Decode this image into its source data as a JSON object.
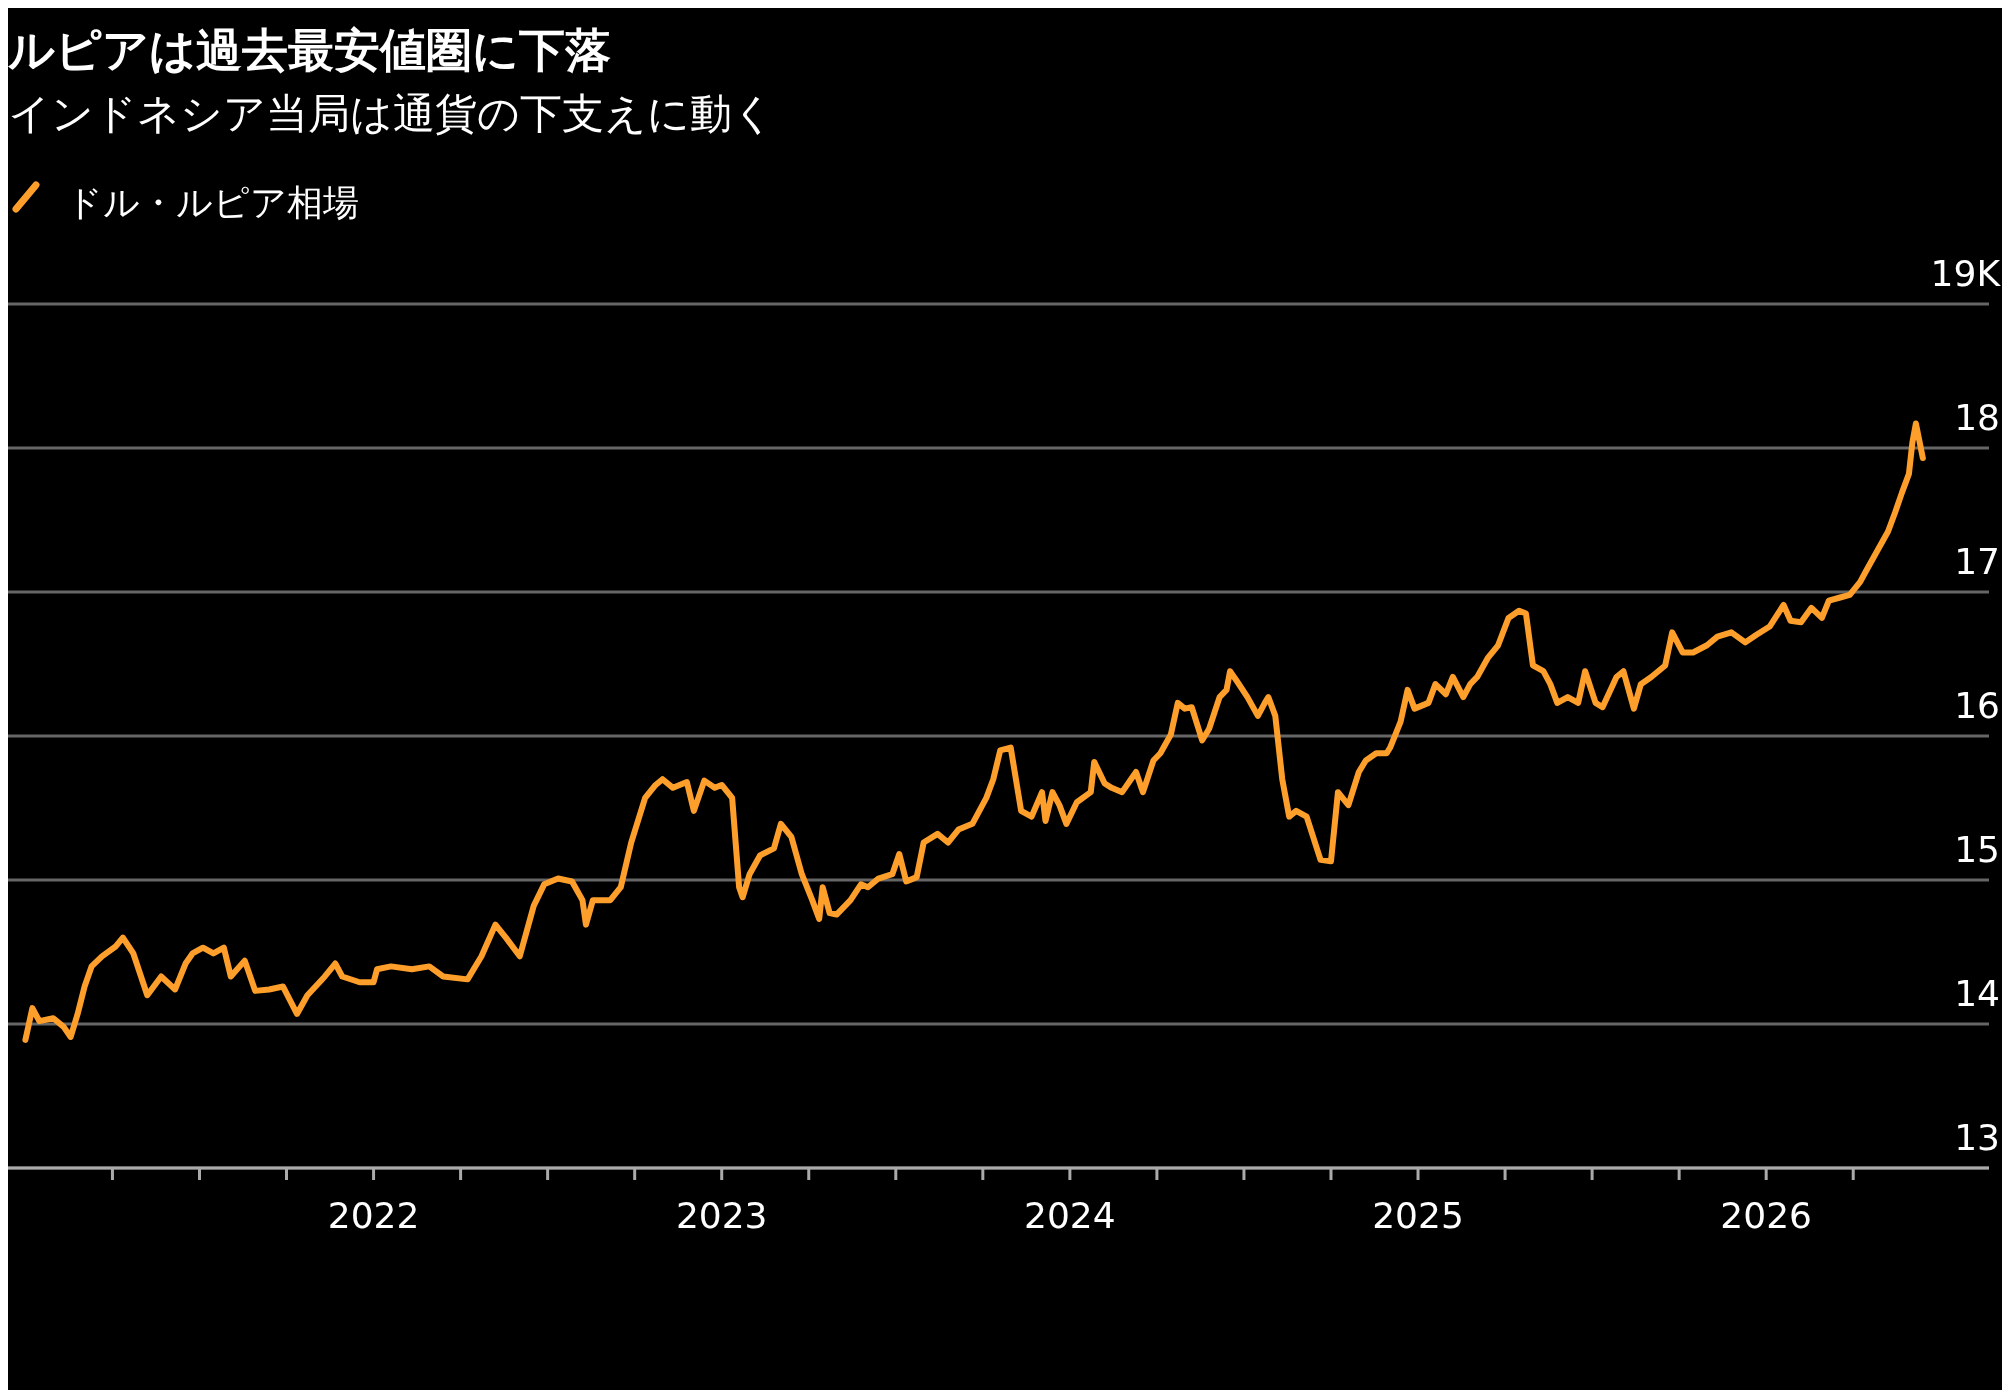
{
  "chart_data": {
    "type": "line",
    "title": "ルピアは過去最安値圏に下落",
    "subtitle": "インドネシア当局は通貨の下支えに動く",
    "xlim": [
      2020.95,
      2026.64
    ],
    "xticks": [
      {
        "value": 2021.25,
        "label": null
      },
      {
        "value": 2021.5,
        "label": null
      },
      {
        "value": 2021.75,
        "label": null
      },
      2022,
      {
        "value": 2022.25,
        "label": null
      },
      {
        "value": 2022.5,
        "label": null
      },
      {
        "value": 2022.75,
        "label": null
      },
      2023,
      {
        "value": 2023.25,
        "label": null
      },
      {
        "value": 2023.5,
        "label": null
      },
      {
        "value": 2023.75,
        "label": null
      },
      2024,
      {
        "value": 2024.25,
        "label": null
      },
      {
        "value": 2024.5,
        "label": null
      },
      {
        "value": 2024.75,
        "label": null
      },
      2025,
      {
        "value": 2025.25,
        "label": null
      },
      {
        "value": 2025.5,
        "label": null
      },
      {
        "value": 2025.75,
        "label": null
      },
      2026,
      {
        "value": 2026.25,
        "label": null
      }
    ],
    "ylim": [
      13,
      19
    ],
    "yticks": [
      13,
      14,
      15,
      16,
      17,
      18,
      {
        "value": 19,
        "label": "19K"
      }
    ],
    "grid": "y",
    "legend": "top left",
    "marker": "none",
    "line_style": "solid",
    "series": [
      {
        "name": "ドル・ルピア相場",
        "color": "#ff9f2b",
        "x": [
          2021.0,
          2021.02,
          2021.04,
          2021.08,
          2021.11,
          2021.13,
          2021.15,
          2021.17,
          2021.19,
          2021.22,
          2021.26,
          2021.28,
          2021.31,
          2021.35,
          2021.39,
          2021.43,
          2021.46,
          2021.48,
          2021.51,
          2021.54,
          2021.57,
          2021.59,
          2021.63,
          2021.66,
          2021.7,
          2021.74,
          2021.78,
          2021.81,
          2021.86,
          2021.89,
          2021.91,
          2021.96,
          2022.0,
          2022.01,
          2022.05,
          2022.11,
          2022.16,
          2022.2,
          2022.27,
          2022.31,
          2022.35,
          2022.38,
          2022.42,
          2022.46,
          2022.49,
          2022.53,
          2022.57,
          2022.6,
          2022.61,
          2022.63,
          2022.68,
          2022.71,
          2022.74,
          2022.78,
          2022.81,
          2022.83,
          2022.86,
          2022.9,
          2022.92,
          2022.95,
          2022.98,
          2023.0,
          2023.03,
          2023.05,
          2023.06,
          2023.08,
          2023.11,
          2023.15,
          2023.17,
          2023.2,
          2023.23,
          2023.26,
          2023.28,
          2023.29,
          2023.31,
          2023.33,
          2023.37,
          2023.4,
          2023.42,
          2023.45,
          2023.49,
          2023.51,
          2023.53,
          2023.56,
          2023.58,
          2023.62,
          2023.65,
          2023.68,
          2023.72,
          2023.76,
          2023.78,
          2023.8,
          2023.83,
          2023.86,
          2023.89,
          2023.92,
          2023.93,
          2023.95,
          2023.97,
          2023.99,
          2024.02,
          2024.06,
          2024.07,
          2024.1,
          2024.12,
          2024.15,
          2024.19,
          2024.21,
          2024.24,
          2024.26,
          2024.29,
          2024.31,
          2024.33,
          2024.35,
          2024.38,
          2024.4,
          2024.43,
          2024.45,
          2024.46,
          2024.48,
          2024.51,
          2024.54,
          2024.56,
          2024.57,
          2024.59,
          2024.61,
          2024.63,
          2024.65,
          2024.68,
          2024.72,
          2024.75,
          2024.77,
          2024.8,
          2024.83,
          2024.85,
          2024.88,
          2024.91,
          2024.92,
          2024.95,
          2024.97,
          2024.99,
          2025.03,
          2025.05,
          2025.08,
          2025.1,
          2025.13,
          2025.15,
          2025.17,
          2025.2,
          2025.23,
          2025.26,
          2025.29,
          2025.31,
          2025.33,
          2025.36,
          2025.38,
          2025.4,
          2025.43,
          2025.46,
          2025.48,
          2025.51,
          2025.53,
          2025.57,
          2025.59,
          2025.62,
          2025.64,
          2025.67,
          2025.71,
          2025.73,
          2025.76,
          2025.79,
          2025.83,
          2025.86,
          2025.9,
          2025.94,
          2025.97,
          2026.01,
          2026.05,
          2026.07,
          2026.1,
          2026.13,
          2026.16,
          2026.18,
          2026.21,
          2026.24,
          2026.27,
          2026.29,
          2026.32,
          2026.35,
          2026.37,
          2026.39,
          2026.41,
          2026.42,
          2026.43,
          2026.45
        ],
        "values": [
          13.89,
          14.11,
          14.02,
          14.04,
          13.98,
          13.91,
          14.07,
          14.26,
          14.4,
          14.47,
          14.54,
          14.6,
          14.49,
          14.2,
          14.33,
          14.24,
          14.42,
          14.49,
          14.53,
          14.49,
          14.53,
          14.33,
          14.44,
          14.23,
          14.24,
          14.26,
          14.07,
          14.2,
          14.33,
          14.42,
          14.33,
          14.29,
          14.29,
          14.38,
          14.4,
          14.38,
          14.4,
          14.33,
          14.31,
          14.47,
          14.69,
          14.6,
          14.47,
          14.82,
          14.97,
          15.01,
          14.99,
          14.86,
          14.69,
          14.86,
          14.86,
          14.95,
          15.26,
          15.57,
          15.66,
          15.7,
          15.64,
          15.68,
          15.48,
          15.69,
          15.64,
          15.66,
          15.57,
          14.95,
          14.88,
          15.04,
          15.17,
          15.22,
          15.39,
          15.3,
          15.04,
          14.86,
          14.73,
          14.95,
          14.77,
          14.76,
          14.86,
          14.97,
          14.95,
          15.01,
          15.04,
          15.18,
          14.99,
          15.02,
          15.26,
          15.32,
          15.26,
          15.35,
          15.39,
          15.57,
          15.7,
          15.9,
          15.92,
          15.48,
          15.44,
          15.61,
          15.41,
          15.61,
          15.52,
          15.39,
          15.54,
          15.61,
          15.82,
          15.67,
          15.64,
          15.61,
          15.75,
          15.61,
          15.83,
          15.88,
          16.01,
          16.23,
          16.19,
          16.2,
          15.97,
          16.05,
          16.27,
          16.32,
          16.45,
          16.38,
          16.27,
          16.14,
          16.23,
          16.27,
          16.14,
          15.7,
          15.44,
          15.48,
          15.44,
          15.14,
          15.13,
          15.61,
          15.52,
          15.75,
          15.83,
          15.88,
          15.88,
          15.92,
          16.1,
          16.32,
          16.19,
          16.23,
          16.36,
          16.29,
          16.41,
          16.27,
          16.36,
          16.41,
          16.54,
          16.63,
          16.82,
          16.87,
          16.85,
          16.49,
          16.45,
          16.36,
          16.23,
          16.27,
          16.23,
          16.45,
          16.23,
          16.2,
          16.41,
          16.45,
          16.19,
          16.36,
          16.41,
          16.49,
          16.72,
          16.58,
          16.58,
          16.63,
          16.69,
          16.72,
          16.65,
          16.7,
          16.76,
          16.91,
          16.8,
          16.79,
          16.89,
          16.82,
          16.94,
          16.96,
          16.98,
          17.07,
          17.16,
          17.29,
          17.42,
          17.55,
          17.69,
          17.82,
          18.04,
          18.17,
          17.93
        ]
      }
    ]
  }
}
